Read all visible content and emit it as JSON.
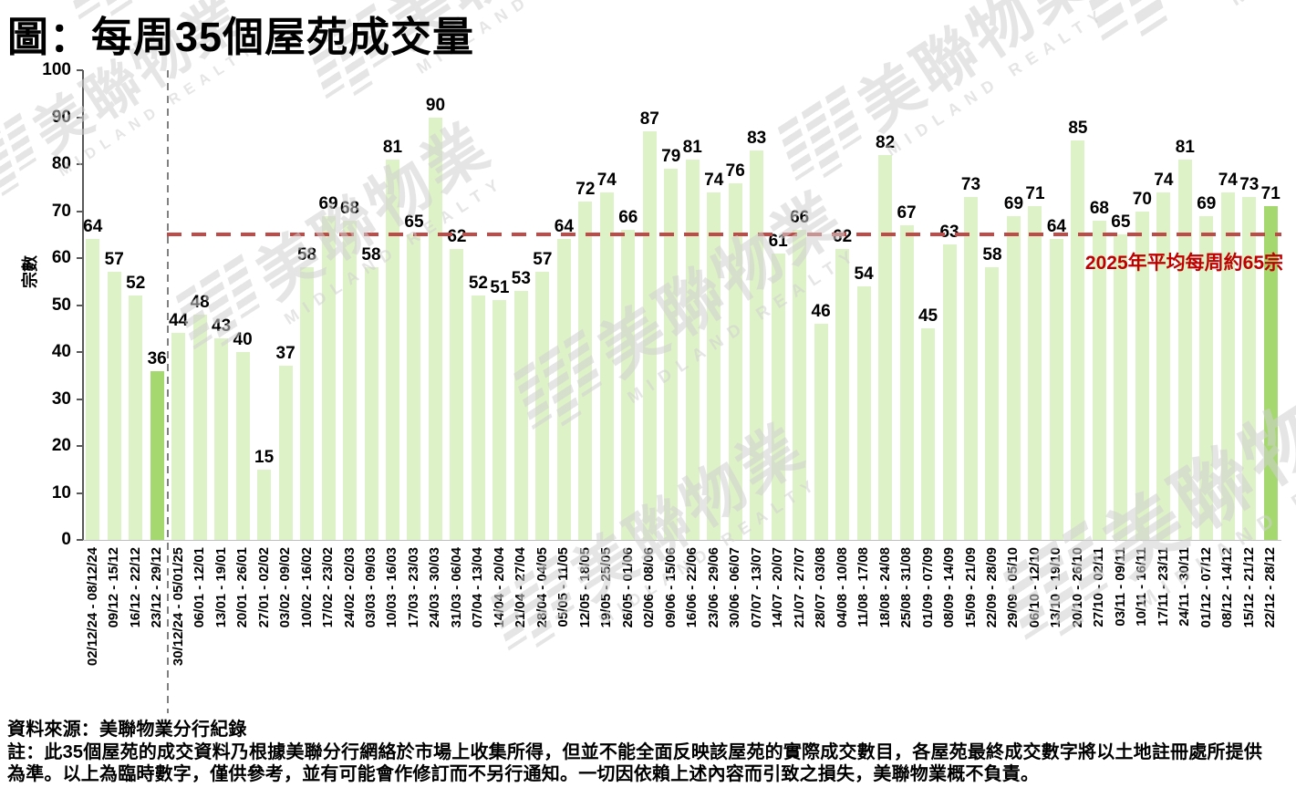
{
  "title": "圖：每周35個屋苑成交量",
  "chart_data": {
    "type": "bar",
    "title": "每周35個屋苑成交量",
    "ylabel": "宗數",
    "xlabel": "",
    "ylim": [
      0,
      100
    ],
    "ytick_step": 10,
    "grid": false,
    "legend": false,
    "categories": [
      "02/12/24 - 08/12/24",
      "09/12 - 15/12",
      "16/12 - 22/12",
      "23/12 - 29/12",
      "30/12/24 - 05/01/25",
      "06/01 - 12/01",
      "13/01 - 19/01",
      "20/01 - 26/01",
      "27/01 - 02/02",
      "03/02 - 09/02",
      "10/02 - 16/02",
      "17/02 - 23/02",
      "24/02 - 02/03",
      "03/03 - 09/03",
      "10/03 - 16/03",
      "17/03 - 23/03",
      "24/03 - 30/03",
      "31/03 - 06/04",
      "07/04 - 13/04",
      "14/04 - 20/04",
      "21/04 - 27/04",
      "28/04 - 04/05",
      "05/05 - 11/05",
      "12/05 - 18/05",
      "19/05 - 25/05",
      "26/05 - 01/06",
      "02/06 - 08/06",
      "09/06 - 15/06",
      "16/06 - 22/06",
      "23/06 - 29/06",
      "30/06 - 06/07",
      "07/07 - 13/07",
      "14/07 - 20/07",
      "21/07 - 27/07",
      "28/07 - 03/08",
      "04/08 - 10/08",
      "11/08 - 17/08",
      "18/08 - 24/08",
      "25/08 - 31/08",
      "01/09 - 07/09",
      "08/09 - 14/09",
      "15/09 - 21/09",
      "22/09 - 28/09",
      "29/09 - 05/10",
      "06/10 - 12/10",
      "13/10 - 19/10",
      "20/10 - 26/10",
      "27/10 - 02/11",
      "03/11 - 09/11",
      "10/11 - 16/11",
      "17/11 - 23/11",
      "24/11 - 30/11",
      "01/12 - 07/12",
      "08/12 - 14/12",
      "15/12 - 21/12",
      "22/12 - 28/12"
    ],
    "values": [
      64,
      57,
      52,
      36,
      44,
      48,
      43,
      40,
      15,
      37,
      58,
      69,
      68,
      58,
      81,
      65,
      90,
      62,
      52,
      51,
      53,
      57,
      64,
      72,
      74,
      66,
      87,
      79,
      81,
      74,
      76,
      83,
      61,
      66,
      46,
      62,
      54,
      82,
      67,
      45,
      63,
      73,
      58,
      69,
      71,
      64,
      85,
      68,
      65,
      70,
      74,
      81,
      69,
      74,
      73,
      71
    ],
    "highlight_indices": [
      3,
      55
    ],
    "divider_after_index": 3,
    "average_line": {
      "value": 65,
      "label": "2025年平均每周約65宗"
    },
    "colors": {
      "bar": "#DEF2C7",
      "bar_highlight": "#A5D86E",
      "average_line": "#BE4B48",
      "average_label": "#C00000",
      "divider": "#808080",
      "axis": "#595959"
    }
  },
  "footer": {
    "source": "資料來源：美聯物業分行紀錄",
    "note_line1": "註：此35個屋苑的成交資料乃根據美聯分行網絡於市場上收集所得，但並不能全面反映該屋苑的實際成交數目，各屋苑最終成交數字將以土地註冊處所提供",
    "note_line2": "為準。以上為臨時數字，僅供參考，並有可能會作修訂而不另行通知。一切因依賴上述內容而引致之損失，美聯物業概不負責。"
  },
  "watermark": {
    "cn": "美聯物業",
    "en": "MIDLAND REALTY"
  }
}
